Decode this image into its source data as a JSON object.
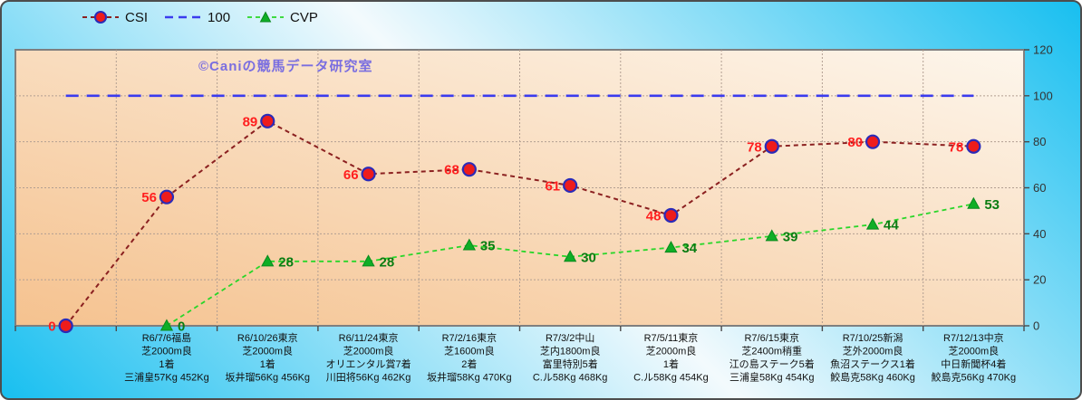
{
  "watermark": "©Caniの競馬データ研究室",
  "legend": [
    {
      "label": "CSI"
    },
    {
      "label": "100"
    },
    {
      "label": "CVP"
    }
  ],
  "colors": {
    "frame_border": "#4d4d4d",
    "background_cyan": "#18bff0",
    "background_light": "#f3fafd",
    "plot_fill_dark": "#f5c28f",
    "plot_fill_light": "#fdf6ec",
    "plot_border": "#7f7f7f",
    "grid": "#b29f92",
    "axis_text": "#333333",
    "category_text": "#111111",
    "watermark": "#7a6ee0"
  },
  "chart_data": {
    "type": "line",
    "title": "",
    "xlabel": "",
    "ylabel": "",
    "y_axis": {
      "min": 0,
      "max": 120,
      "step": 20,
      "side": "right",
      "ticks": [
        0,
        20,
        40,
        60,
        80,
        100,
        120
      ]
    },
    "grid": true,
    "legend_position": "top-left",
    "categories": [
      {
        "lines": []
      },
      {
        "lines": [
          "R6/7/6福島",
          "芝2000m良",
          "1着",
          "三浦皇57Kg 452Kg"
        ]
      },
      {
        "lines": [
          "R6/10/26東京",
          "芝2000m良",
          "1着",
          "坂井瑠56Kg 456Kg"
        ]
      },
      {
        "lines": [
          "R6/11/24東京",
          "芝2000m良",
          "オリエンタル賞7着",
          "川田将56Kg 462Kg"
        ]
      },
      {
        "lines": [
          "R7/2/16東京",
          "芝1600m良",
          "2着",
          "坂井瑠58Kg 470Kg"
        ]
      },
      {
        "lines": [
          "R7/3/2中山",
          "芝内1800m良",
          "富里特別5着",
          "C.ル58Kg 468Kg"
        ]
      },
      {
        "lines": [
          "R7/5/11東京",
          "芝2000m良",
          "1着",
          "C.ル58Kg 454Kg"
        ]
      },
      {
        "lines": [
          "R7/6/15東京",
          "芝2400m稍重",
          "江の島ステーク5着",
          "三浦皇58Kg 454Kg"
        ]
      },
      {
        "lines": [
          "R7/10/25新潟",
          "芝外2000m良",
          "魚沼ステークス1着",
          "鮫島克58Kg 460Kg"
        ]
      },
      {
        "lines": [
          "R7/12/13中京",
          "芝2000m良",
          "中日新聞杯4着",
          "鮫島克56Kg 470Kg"
        ]
      }
    ],
    "series": [
      {
        "name": "CSI",
        "values": [
          0,
          56,
          89,
          66,
          68,
          61,
          48,
          78,
          80,
          78
        ],
        "line_color": "#8b2020",
        "dash": "5 4",
        "line_width": 2,
        "marker": "circle",
        "marker_fill": "#ee1c1c",
        "marker_stroke": "#2b2bb8",
        "show_labels": true,
        "label_color": "#ff1f1f",
        "label_side": "left"
      },
      {
        "name": "100",
        "values": [
          100,
          100,
          100,
          100,
          100,
          100,
          100,
          100,
          100,
          100
        ],
        "line_color": "#3b3bee",
        "dash": "14 9",
        "line_width": 2.6,
        "marker": "none",
        "show_labels": false
      },
      {
        "name": "CVP",
        "values": [
          null,
          0,
          28,
          28,
          35,
          30,
          34,
          39,
          44,
          53
        ],
        "line_color": "#29d629",
        "dash": "5 4",
        "line_width": 1.8,
        "marker": "triangle",
        "marker_fill": "#0eae26",
        "marker_stroke": "#0a8a1e",
        "show_labels": true,
        "label_color": "#0a7d12",
        "label_side": "right"
      }
    ]
  }
}
